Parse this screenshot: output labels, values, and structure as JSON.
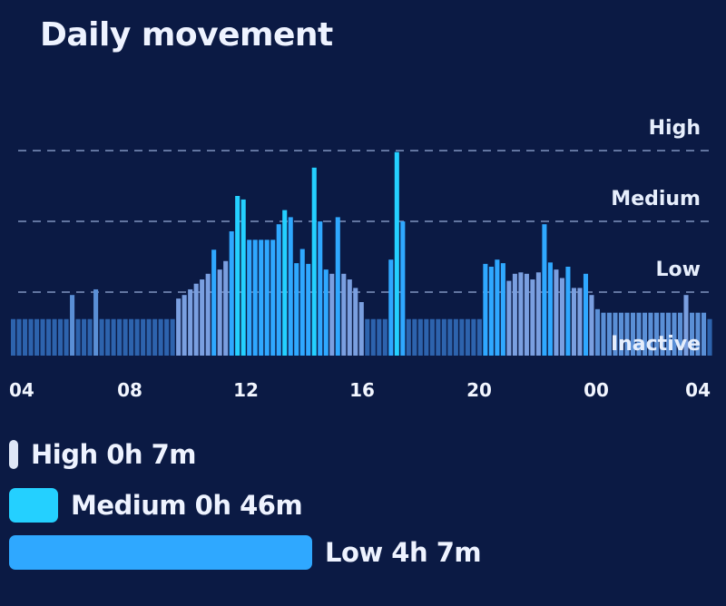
{
  "title": "Daily movement",
  "chart_data": {
    "type": "bar",
    "levels": [
      "Inactive",
      "Low",
      "Medium",
      "High"
    ],
    "x_ticks": [
      "04",
      "08",
      "12",
      "16",
      "20",
      "00",
      "04"
    ],
    "bars": [
      {
        "level": 0,
        "v": 0.4,
        "c": "#2a5ea6"
      },
      {
        "level": 0,
        "v": 0.4,
        "c": "#2a5ea6"
      },
      {
        "level": 0,
        "v": 0.4,
        "c": "#2a5ea6"
      },
      {
        "level": 0,
        "v": 0.4,
        "c": "#2a5ea6"
      },
      {
        "level": 0,
        "v": 0.4,
        "c": "#2a5ea6"
      },
      {
        "level": 0,
        "v": 0.4,
        "c": "#2a5ea6"
      },
      {
        "level": 0,
        "v": 0.4,
        "c": "#2a5ea6"
      },
      {
        "level": 0,
        "v": 0.4,
        "c": "#2a5ea6"
      },
      {
        "level": 0,
        "v": 0.4,
        "c": "#2a5ea6"
      },
      {
        "level": 0,
        "v": 0.4,
        "c": "#2a5ea6"
      },
      {
        "level": 0,
        "v": 0.4,
        "c": "#2a5ea6"
      },
      {
        "level": 0,
        "v": 0.4,
        "c": "#2a5ea6"
      },
      {
        "level": 0,
        "v": 0.4,
        "c": "#2a5ea6"
      },
      {
        "level": 0,
        "v": 0.4,
        "c": "#2a5ea6"
      },
      {
        "level": 0,
        "v": 0.4,
        "c": "#2a5ea6"
      },
      {
        "level": 0,
        "v": 0.4,
        "c": "#2a5ea6"
      },
      {
        "level": 0,
        "v": 0.4,
        "c": "#2a5ea6"
      },
      {
        "level": 0,
        "v": 0.4,
        "c": "#2a5ea6"
      },
      {
        "level": 0,
        "v": 0.4,
        "c": "#2a5ea6"
      },
      {
        "level": 0,
        "v": 0.4,
        "c": "#2a5ea6"
      },
      {
        "level": 0,
        "v": 0.4,
        "c": "#2a5ea6"
      },
      {
        "level": 0,
        "v": 0.4,
        "c": "#2a5ea6"
      },
      {
        "level": 0,
        "v": 0.4,
        "c": "#2a5ea6"
      },
      {
        "level": 0,
        "v": 0.4,
        "c": "#2a5ea6"
      },
      {
        "level": 0,
        "v": 0.4,
        "c": "#2a5ea6"
      },
      {
        "level": 0,
        "v": 0.4,
        "c": "#2a5ea6"
      },
      {
        "level": 0,
        "v": 0.4,
        "c": "#2a5ea6"
      },
      {
        "level": 0,
        "v": 0.4,
        "c": "#2a5ea6"
      },
      {
        "level": 0,
        "v": 0.4,
        "c": "#2a5ea6"
      },
      {
        "level": 0,
        "v": 0.4,
        "c": "#2a5ea6"
      },
      {
        "level": 0,
        "v": 0.4,
        "c": "#2a5ea6"
      },
      {
        "level": 0,
        "v": 0.4,
        "c": "#2a5ea6"
      },
      {
        "level": 0,
        "v": 0.4,
        "c": "#2a5ea6"
      },
      {
        "level": 0,
        "v": 0.4,
        "c": "#2a5ea6"
      },
      {
        "level": 0,
        "v": 0.4,
        "c": "#2a5ea6"
      },
      {
        "level": 0,
        "v": 0.4,
        "c": "#2a5ea6"
      }
    ],
    "bar_sequence": [
      [
        0,
        0.26,
        "#2d63ad"
      ],
      [
        1,
        0.26,
        "#2d63ad"
      ],
      [
        2,
        0.26,
        "#2d63ad"
      ],
      [
        3,
        0.26,
        "#2d63ad"
      ],
      [
        4,
        0.26,
        "#2d63ad"
      ],
      [
        5,
        0.26,
        "#2d63ad"
      ],
      [
        6,
        0.26,
        "#2d63ad"
      ],
      [
        7,
        0.26,
        "#2d63ad"
      ],
      [
        8,
        0.26,
        "#2d63ad"
      ],
      [
        9,
        0.26,
        "#2d63ad"
      ],
      [
        10,
        0.6,
        "#5a8fd6"
      ],
      [
        11,
        0.26,
        "#2d63ad"
      ],
      [
        12,
        0.26,
        "#2d63ad"
      ],
      [
        13,
        0.26,
        "#2d63ad"
      ],
      [
        14,
        0.68,
        "#5a8fd6"
      ],
      [
        15,
        0.26,
        "#2d63ad"
      ],
      [
        16,
        0.26,
        "#2d63ad"
      ],
      [
        17,
        0.26,
        "#2d63ad"
      ],
      [
        18,
        0.26,
        "#2d63ad"
      ],
      [
        19,
        0.26,
        "#2d63ad"
      ],
      [
        20,
        0.26,
        "#2d63ad"
      ],
      [
        21,
        0.26,
        "#2d63ad"
      ],
      [
        22,
        0.26,
        "#2d63ad"
      ],
      [
        23,
        0.26,
        "#2d63ad"
      ],
      [
        24,
        0.26,
        "#2d63ad"
      ],
      [
        25,
        0.26,
        "#2d63ad"
      ],
      [
        26,
        0.26,
        "#2d63ad"
      ],
      [
        27,
        0.26,
        "#2d63ad"
      ],
      [
        28,
        0.55,
        "#7a9fe0"
      ],
      [
        29,
        0.6,
        "#7a9fe0"
      ],
      [
        30,
        0.68,
        "#7a9fe0"
      ],
      [
        31,
        0.76,
        "#7a9fe0"
      ],
      [
        32,
        0.82,
        "#7a9fe0"
      ],
      [
        33,
        0.9,
        "#7a9fe0"
      ],
      [
        34,
        1.24,
        "#2fa8ff"
      ],
      [
        35,
        0.96,
        "#7a9fe0"
      ],
      [
        36,
        1.08,
        "#7a9fe0"
      ],
      [
        37,
        1.5,
        "#2fa8ff"
      ],
      [
        38,
        2.0,
        "#24d0ff"
      ],
      [
        39,
        1.95,
        "#24d0ff"
      ],
      [
        40,
        1.38,
        "#2fa8ff"
      ],
      [
        41,
        1.38,
        "#2fa8ff"
      ],
      [
        42,
        1.38,
        "#2fa8ff"
      ],
      [
        43,
        1.38,
        "#2fa8ff"
      ],
      [
        44,
        1.38,
        "#2fa8ff"
      ],
      [
        45,
        1.6,
        "#2fa8ff"
      ],
      [
        46,
        1.8,
        "#24d0ff"
      ],
      [
        47,
        1.7,
        "#2fa8ff"
      ],
      [
        48,
        1.05,
        "#2fa8ff"
      ],
      [
        49,
        1.25,
        "#2fa8ff"
      ],
      [
        50,
        1.04,
        "#2fa8ff"
      ],
      [
        51,
        2.4,
        "#24d0ff"
      ],
      [
        52,
        1.64,
        "#2fa8ff"
      ],
      [
        53,
        0.96,
        "#2fa8ff"
      ],
      [
        54,
        0.9,
        "#7a9fe0"
      ],
      [
        55,
        1.7,
        "#2fa8ff"
      ],
      [
        56,
        0.9,
        "#7a9fe0"
      ],
      [
        57,
        0.82,
        "#7a9fe0"
      ],
      [
        58,
        0.7,
        "#7a9fe0"
      ],
      [
        59,
        0.5,
        "#7a9fe0"
      ],
      [
        60,
        0.26,
        "#2d63ad"
      ],
      [
        61,
        0.26,
        "#2d63ad"
      ],
      [
        62,
        0.26,
        "#2d63ad"
      ],
      [
        63,
        0.26,
        "#2d63ad"
      ],
      [
        64,
        1.1,
        "#2fa8ff"
      ],
      [
        65,
        2.62,
        "#24d0ff"
      ],
      [
        66,
        1.64,
        "#2fa8ff"
      ],
      [
        67,
        0.26,
        "#2d63ad"
      ],
      [
        68,
        0.26,
        "#2d63ad"
      ],
      [
        69,
        0.26,
        "#2d63ad"
      ],
      [
        70,
        0.26,
        "#2d63ad"
      ],
      [
        71,
        0.26,
        "#2d63ad"
      ],
      [
        72,
        0.26,
        "#2d63ad"
      ],
      [
        73,
        0.26,
        "#2d63ad"
      ],
      [
        74,
        0.26,
        "#2d63ad"
      ],
      [
        75,
        0.26,
        "#2d63ad"
      ],
      [
        76,
        0.26,
        "#2d63ad"
      ],
      [
        77,
        0.26,
        "#2d63ad"
      ],
      [
        78,
        0.26,
        "#2d63ad"
      ],
      [
        79,
        0.26,
        "#2d63ad"
      ],
      [
        80,
        1.04,
        "#2fa8ff"
      ],
      [
        81,
        1.0,
        "#2fa8ff"
      ],
      [
        82,
        1.1,
        "#2fa8ff"
      ],
      [
        83,
        1.05,
        "#2fa8ff"
      ],
      [
        84,
        0.8,
        "#7a9fe0"
      ],
      [
        85,
        0.9,
        "#7a9fe0"
      ],
      [
        86,
        0.92,
        "#7a9fe0"
      ],
      [
        87,
        0.9,
        "#7a9fe0"
      ],
      [
        88,
        0.82,
        "#7a9fe0"
      ],
      [
        89,
        0.92,
        "#7a9fe0"
      ],
      [
        90,
        1.6,
        "#2fa8ff"
      ],
      [
        91,
        1.06,
        "#2fa8ff"
      ],
      [
        92,
        0.96,
        "#7a9fe0"
      ],
      [
        93,
        0.84,
        "#7a9fe0"
      ],
      [
        94,
        1.0,
        "#2fa8ff"
      ],
      [
        95,
        0.7,
        "#7a9fe0"
      ],
      [
        96,
        0.7,
        "#7a9fe0"
      ],
      [
        97,
        0.9,
        "#2fa8ff"
      ],
      [
        98,
        0.6,
        "#7a9fe0"
      ],
      [
        99,
        0.4,
        "#5a8fd6"
      ],
      [
        100,
        0.35,
        "#5a8fd6"
      ],
      [
        101,
        0.35,
        "#5a8fd6"
      ],
      [
        102,
        0.35,
        "#5a8fd6"
      ],
      [
        103,
        0.35,
        "#5a8fd6"
      ],
      [
        104,
        0.35,
        "#5a8fd6"
      ],
      [
        105,
        0.35,
        "#5a8fd6"
      ],
      [
        106,
        0.35,
        "#5a8fd6"
      ],
      [
        107,
        0.35,
        "#5a8fd6"
      ],
      [
        108,
        0.35,
        "#5a8fd6"
      ],
      [
        109,
        0.35,
        "#5a8fd6"
      ],
      [
        110,
        0.35,
        "#5a8fd6"
      ],
      [
        111,
        0.35,
        "#5a8fd6"
      ],
      [
        112,
        0.35,
        "#5a8fd6"
      ],
      [
        113,
        0.35,
        "#5a8fd6"
      ],
      [
        114,
        0.6,
        "#7a9fe0"
      ],
      [
        115,
        0.35,
        "#5a8fd6"
      ],
      [
        116,
        0.35,
        "#5a8fd6"
      ],
      [
        117,
        0.35,
        "#5a8fd6"
      ],
      [
        118,
        0.26,
        "#2d63ad"
      ]
    ],
    "total_slots": 119
  },
  "legend": [
    {
      "label": "High 0h 7m",
      "color": "#dfe7f7",
      "fraction": 0.024
    },
    {
      "label": "Medium 0h 46m",
      "color": "#24d0ff",
      "fraction": 0.163
    },
    {
      "label": "Low 4h 7m",
      "color": "#2fa8ff",
      "fraction": 1.0
    }
  ]
}
